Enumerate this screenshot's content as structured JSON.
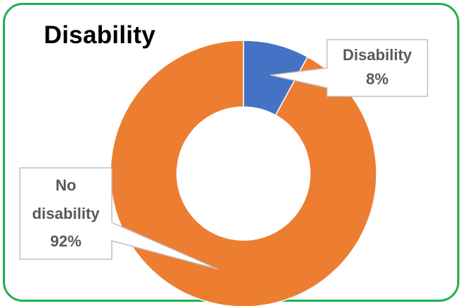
{
  "chart_data": {
    "type": "pie",
    "title": "Disability",
    "slices": [
      {
        "name": "Disability",
        "value": 8,
        "label": "8%",
        "color": "#4472c4"
      },
      {
        "name": "No disability",
        "value": 92,
        "label": "92%",
        "color": "#ed7d31"
      }
    ],
    "legend": "none"
  },
  "colors": {
    "frame_border": "#1fb24a",
    "callout_text": "#595959"
  }
}
